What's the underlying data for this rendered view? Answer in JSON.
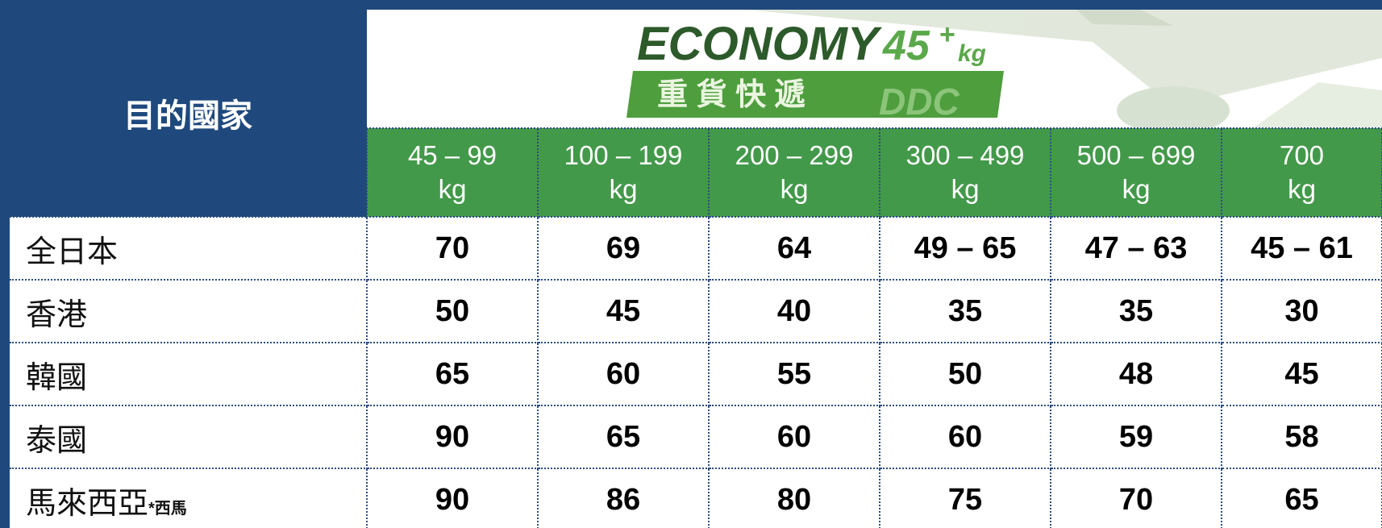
{
  "header": {
    "destination": "目的國家",
    "logo": {
      "title": "ECONOMY",
      "weight": "45",
      "sup": "+",
      "unit": "kg",
      "subtitle": "重 貨 快 遞",
      "code": "DDC"
    },
    "columns": [
      {
        "range": "45 – 99",
        "unit": "kg"
      },
      {
        "range": "100 – 199",
        "unit": "kg"
      },
      {
        "range": "200 – 299",
        "unit": "kg"
      },
      {
        "range": "300 – 499",
        "unit": "kg"
      },
      {
        "range": "500 – 699",
        "unit": "kg"
      },
      {
        "range": "700",
        "unit": "kg"
      }
    ]
  },
  "table": {
    "rows": [
      {
        "country": "全日本",
        "values": [
          70,
          69,
          64,
          "49 – 65",
          "47 – 63",
          "45 – 61"
        ]
      },
      {
        "country": "香港",
        "values": [
          50,
          45,
          40,
          35,
          35,
          30
        ]
      },
      {
        "country": "韓國",
        "values": [
          65,
          60,
          55,
          50,
          48,
          45
        ]
      },
      {
        "country": "泰國",
        "values": [
          90,
          65,
          60,
          60,
          59,
          58
        ]
      },
      {
        "country": "馬來西亞",
        "note": "*西馬",
        "values": [
          90,
          86,
          80,
          75,
          70,
          65
        ]
      }
    ]
  }
}
